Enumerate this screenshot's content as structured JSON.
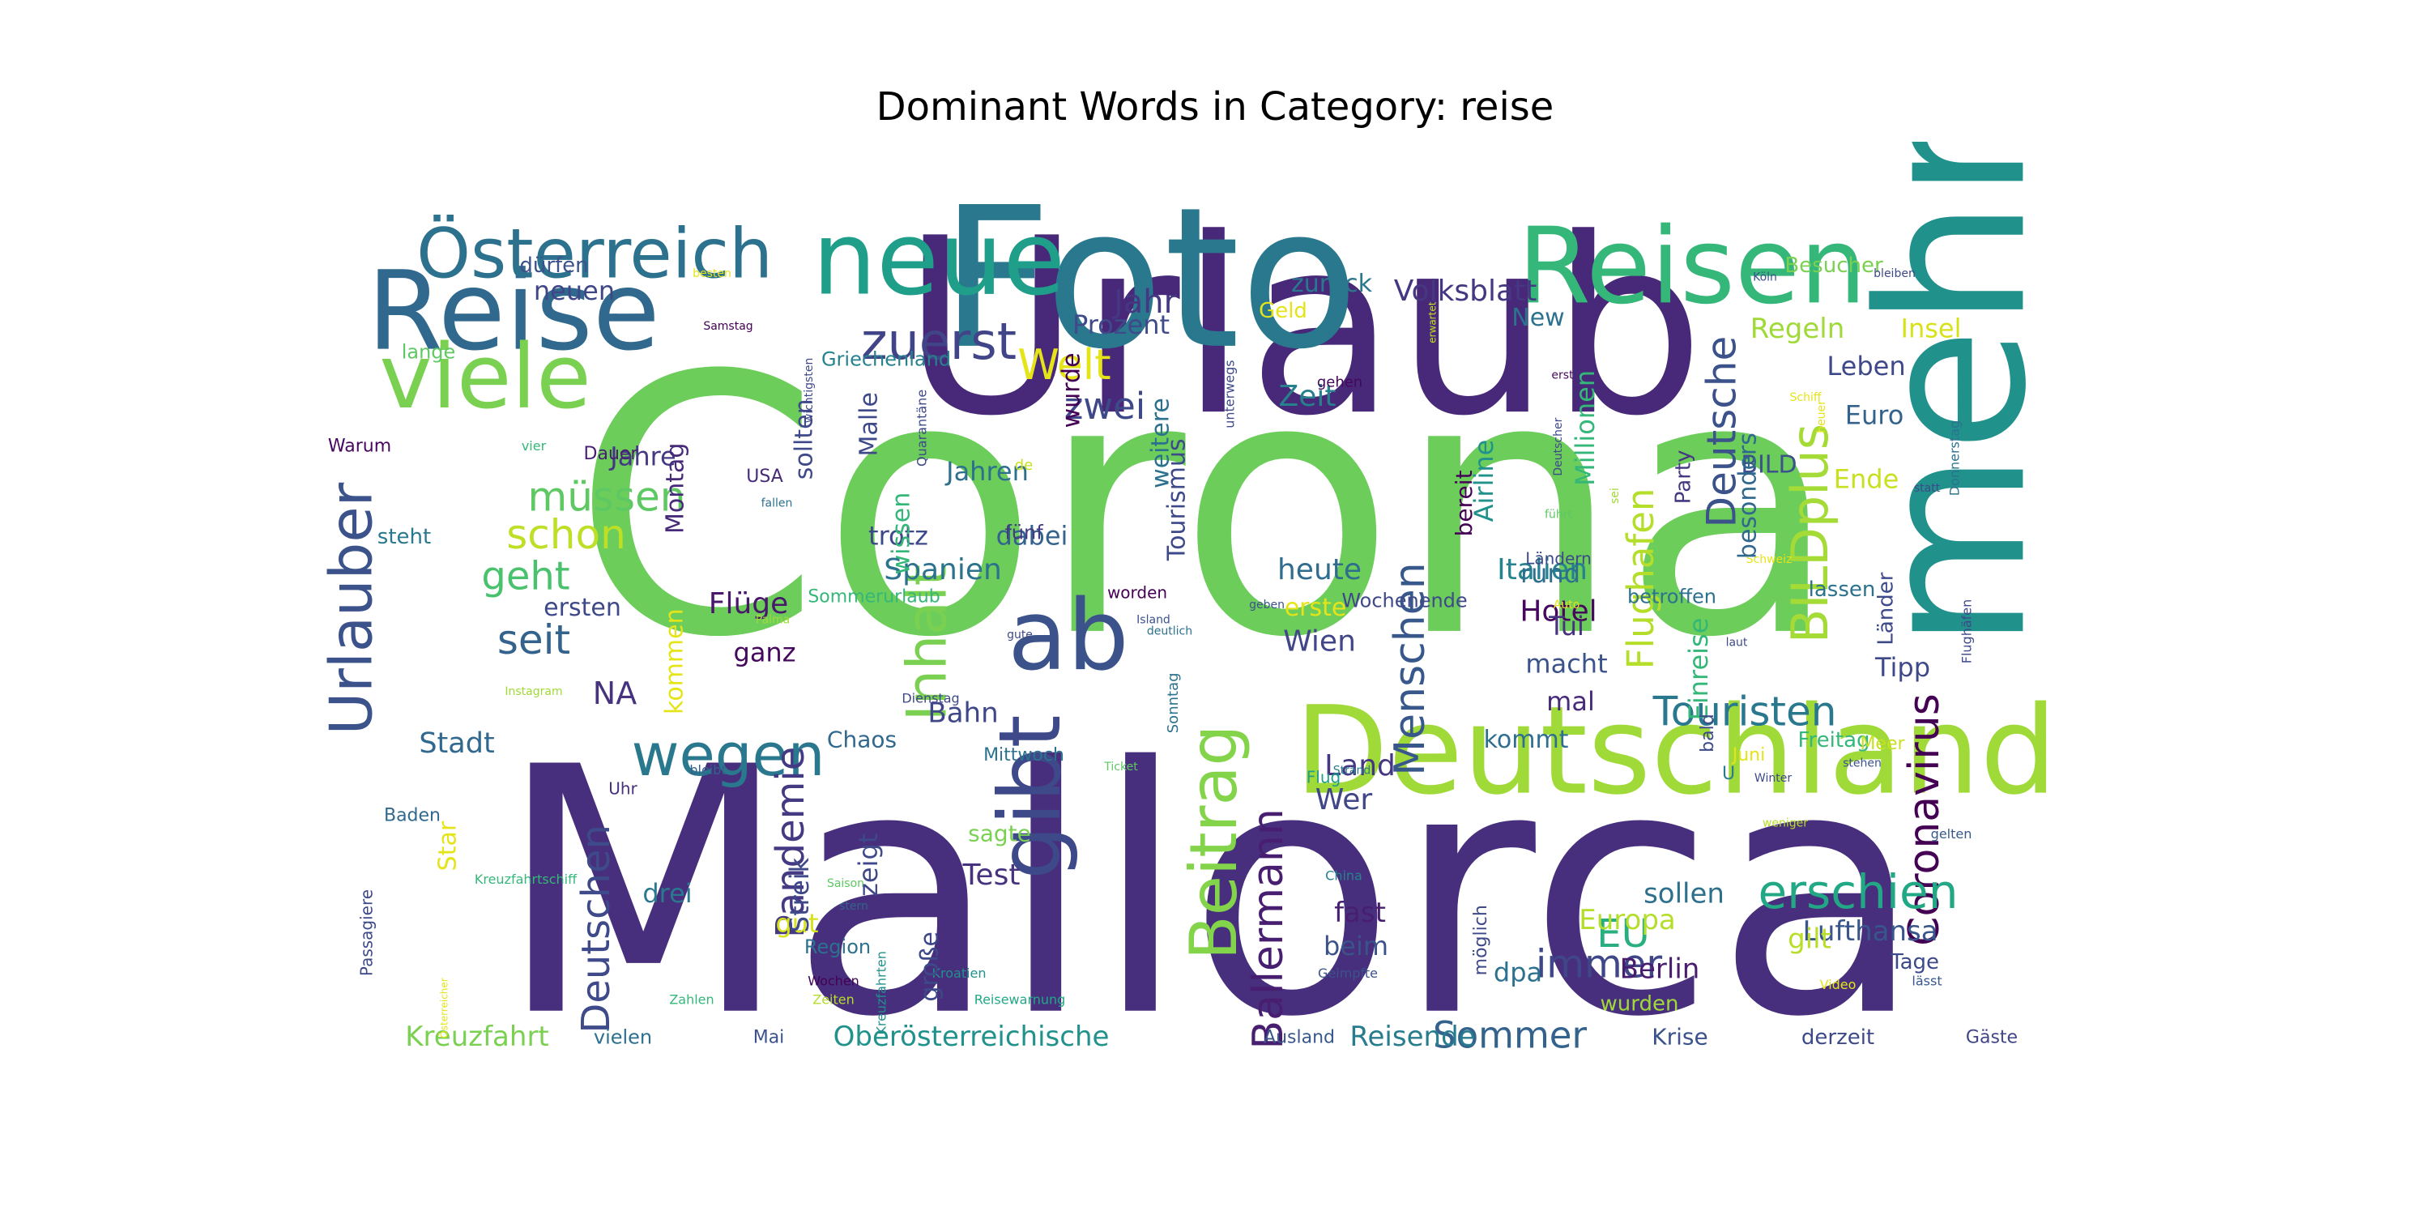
{
  "chart_data": {
    "type": "wordcloud",
    "title": "Dominant Words in Category: reise",
    "colormap": "viridis",
    "words": [
      {
        "text": "Corona",
        "weight": 100,
        "color": "#6ccd5a"
      },
      {
        "text": "Mallorca",
        "weight": 98,
        "color": "#472f7d"
      },
      {
        "text": "Urlaub",
        "weight": 90,
        "color": "#482878"
      },
      {
        "text": "Foto",
        "weight": 64,
        "color": "#2a788e"
      },
      {
        "text": "mehr",
        "weight": 60,
        "color": "#21918c"
      },
      {
        "text": "Deutschland",
        "weight": 40,
        "color": "#a0da39"
      },
      {
        "text": "Reisen",
        "weight": 34,
        "color": "#35b779"
      },
      {
        "text": "neue",
        "weight": 30,
        "color": "#1f9e89"
      },
      {
        "text": "Reise",
        "weight": 30,
        "color": "#31688e"
      },
      {
        "text": "viele",
        "weight": 27,
        "color": "#7ad151"
      },
      {
        "text": "ab",
        "weight": 27,
        "color": "#3b528b"
      },
      {
        "text": "gibt",
        "weight": 24,
        "color": "#3e4989"
      },
      {
        "text": "Österreich",
        "weight": 22,
        "color": "#2c728e"
      },
      {
        "text": "Beitrag",
        "weight": 20,
        "color": "#84d44b"
      },
      {
        "text": "wegen",
        "weight": 19,
        "color": "#2a788e"
      },
      {
        "text": "Urlauber",
        "weight": 19,
        "color": "#3b528b"
      },
      {
        "text": "Inhalt",
        "weight": 18,
        "color": "#7ad151"
      },
      {
        "text": "BILDplus",
        "weight": 17,
        "color": "#a5db36"
      },
      {
        "text": "zuerst",
        "weight": 16,
        "color": "#414487"
      },
      {
        "text": "Coronavirus",
        "weight": 15,
        "color": "#440154"
      },
      {
        "text": "Pandemie",
        "weight": 14,
        "color": "#443983"
      },
      {
        "text": "Ballermann",
        "weight": 14,
        "color": "#481f70"
      },
      {
        "text": "Deutschen",
        "weight": 14,
        "color": "#3e4a89"
      },
      {
        "text": "Menschen",
        "weight": 14,
        "color": "#38588c"
      },
      {
        "text": "erschien",
        "weight": 14,
        "color": "#22a884"
      },
      {
        "text": "Touristen",
        "weight": 13,
        "color": "#2a788e"
      },
      {
        "text": "Deutsche",
        "weight": 13,
        "color": "#3b528b"
      },
      {
        "text": "Flughafen",
        "weight": 12,
        "color": "#b5de2b"
      },
      {
        "text": "schon",
        "weight": 12,
        "color": "#bddf26"
      },
      {
        "text": "müssen",
        "weight": 12,
        "color": "#5ec962"
      },
      {
        "text": "Welt",
        "weight": 12,
        "color": "#e5e419"
      },
      {
        "text": "seit",
        "weight": 12,
        "color": "#33638d"
      },
      {
        "text": "geht",
        "weight": 11,
        "color": "#4ac16d"
      },
      {
        "text": "zwei",
        "weight": 11,
        "color": "#3e4989"
      },
      {
        "text": "immer",
        "weight": 11,
        "color": "#3f4788"
      },
      {
        "text": "Sommer",
        "weight": 11,
        "color": "#33638d"
      },
      {
        "text": "Jahr",
        "weight": 11,
        "color": "#453781"
      },
      {
        "text": "EU",
        "weight": 11,
        "color": "#29af7f"
      },
      {
        "text": "Volksblatt",
        "weight": 10,
        "color": "#453781"
      },
      {
        "text": "Stadt",
        "weight": 10,
        "color": "#31688e"
      },
      {
        "text": "Kreuzfahrt",
        "weight": 10,
        "color": "#7ad151"
      },
      {
        "text": "Oberösterreichische",
        "weight": 10,
        "color": "#21918c"
      },
      {
        "text": "Reisende",
        "weight": 10,
        "color": "#287c8e"
      },
      {
        "text": "NA",
        "weight": 10,
        "color": "#46327e"
      },
      {
        "text": "Flüge",
        "weight": 10,
        "color": "#48186a"
      },
      {
        "text": "Spanien",
        "weight": 10,
        "color": "#2c728e"
      },
      {
        "text": "Italien",
        "weight": 10,
        "color": "#26828e"
      },
      {
        "text": "Wien",
        "weight": 9,
        "color": "#404688"
      },
      {
        "text": "Hotel",
        "weight": 9,
        "color": "#46085c"
      },
      {
        "text": "heute",
        "weight": 9,
        "color": "#2f6c8e"
      },
      {
        "text": "Lufthansa",
        "weight": 9,
        "color": "#39568c"
      },
      {
        "text": "Berlin",
        "weight": 9,
        "color": "#481c6e"
      },
      {
        "text": "sollen",
        "weight": 9,
        "color": "#2d708e"
      },
      {
        "text": "Europa",
        "weight": 9,
        "color": "#b5de2b"
      },
      {
        "text": "Test",
        "weight": 9,
        "color": "#46327e"
      },
      {
        "text": "Wer",
        "weight": 9,
        "color": "#404688"
      },
      {
        "text": "Land",
        "weight": 9,
        "color": "#453781"
      },
      {
        "text": "Bahn",
        "weight": 9,
        "color": "#3f4788"
      },
      {
        "text": "Zeit",
        "weight": 9,
        "color": "#27808e"
      },
      {
        "text": "Regeln",
        "weight": 9,
        "color": "#a0da39"
      },
      {
        "text": "Leben",
        "weight": 9,
        "color": "#3e4989"
      },
      {
        "text": "Euro",
        "weight": 9,
        "color": "#33638d"
      },
      {
        "text": "Ende",
        "weight": 9,
        "color": "#c8e020"
      },
      {
        "text": "Insel",
        "weight": 9,
        "color": "#d8e219"
      },
      {
        "text": "Tipp",
        "weight": 8,
        "color": "#3e4989"
      },
      {
        "text": "Jahren",
        "weight": 8,
        "color": "#2d708e"
      },
      {
        "text": "trotz",
        "weight": 8,
        "color": "#3e4989"
      },
      {
        "text": "dabei",
        "weight": 8,
        "color": "#33638d"
      },
      {
        "text": "ganz",
        "weight": 8,
        "color": "#46085c"
      },
      {
        "text": "macht",
        "weight": 8,
        "color": "#3b528b"
      },
      {
        "text": "rund",
        "weight": 8,
        "color": "#2e6e8e"
      },
      {
        "text": "Tui",
        "weight": 8,
        "color": "#46327e"
      },
      {
        "text": "mal",
        "weight": 8,
        "color": "#472a7a"
      },
      {
        "text": "kommt",
        "weight": 7,
        "color": "#2e6e8e"
      },
      {
        "text": "fast",
        "weight": 8,
        "color": "#481f70"
      },
      {
        "text": "beim",
        "weight": 8,
        "color": "#3b528b"
      },
      {
        "text": "dpa",
        "weight": 8,
        "color": "#2c728e"
      },
      {
        "text": "gilt",
        "weight": 8,
        "color": "#b8de29"
      },
      {
        "text": "drei",
        "weight": 8,
        "color": "#2a788e"
      },
      {
        "text": "gut",
        "weight": 8,
        "color": "#d8e219"
      },
      {
        "text": "Jahre",
        "weight": 8,
        "color": "#443a83"
      },
      {
        "text": "ersten",
        "weight": 7,
        "color": "#3e4989"
      },
      {
        "text": "neuen",
        "weight": 8,
        "color": "#3f4788"
      },
      {
        "text": "Prozent",
        "weight": 8,
        "color": "#3e4a89"
      },
      {
        "text": "zurück",
        "weight": 7,
        "color": "#2a788e"
      },
      {
        "text": "New",
        "weight": 7,
        "color": "#2c728e"
      },
      {
        "text": "erste",
        "weight": 7,
        "color": "#e5e419"
      },
      {
        "text": "sagte",
        "weight": 7,
        "color": "#7ad151"
      },
      {
        "text": "Chaos",
        "weight": 7,
        "color": "#31688e"
      },
      {
        "text": "Krise",
        "weight": 6,
        "color": "#3b528b"
      },
      {
        "text": "derzeit",
        "weight": 6,
        "color": "#3e4989"
      },
      {
        "text": "vielen",
        "weight": 6,
        "color": "#2d708e"
      },
      {
        "text": "Ausland",
        "weight": 5,
        "color": "#38588c"
      },
      {
        "text": "Freitag",
        "weight": 6,
        "color": "#35b779"
      },
      {
        "text": "Region",
        "weight": 6,
        "color": "#2c728e"
      },
      {
        "text": "Star",
        "weight": 7,
        "color": "#e5e419"
      },
      {
        "text": "Besucher",
        "weight": 6,
        "color": "#7ad151"
      },
      {
        "text": "Geld",
        "weight": 6,
        "color": "#e5e419"
      },
      {
        "text": "Griechenland",
        "weight": 6,
        "color": "#26828e"
      },
      {
        "text": "dürfen",
        "weight": 6,
        "color": "#3b528b"
      },
      {
        "text": "lange",
        "weight": 5,
        "color": "#5ec962"
      },
      {
        "text": "Warum",
        "weight": 5,
        "color": "#46085c"
      },
      {
        "text": "Dauer",
        "weight": 5,
        "color": "#481f70"
      },
      {
        "text": "steht",
        "weight": 6,
        "color": "#2a788e"
      },
      {
        "text": "USA",
        "weight": 5,
        "color": "#472a7a"
      },
      {
        "text": "fünf",
        "weight": 6,
        "color": "#443983"
      },
      {
        "text": "Party",
        "weight": 6,
        "color": "#453781"
      },
      {
        "text": "BILD",
        "weight": 7,
        "color": "#3b528b"
      },
      {
        "text": "lassen",
        "weight": 6,
        "color": "#2c728e"
      },
      {
        "text": "betroffen",
        "weight": 5,
        "color": "#2c728e"
      },
      {
        "text": "Wochenende",
        "weight": 5,
        "color": "#3e4989"
      },
      {
        "text": "Sommerurlaub",
        "weight": 5,
        "color": "#35b779"
      },
      {
        "text": "Mittwoch",
        "weight": 5,
        "color": "#2c728e"
      },
      {
        "text": "Baden",
        "weight": 5,
        "color": "#31688e"
      },
      {
        "text": "Uhr",
        "weight": 5,
        "color": "#46327e"
      },
      {
        "text": "Mai",
        "weight": 5,
        "color": "#3b528b"
      },
      {
        "text": "Tage",
        "weight": 6,
        "color": "#3e4989"
      },
      {
        "text": "Gäste",
        "weight": 5,
        "color": "#414487"
      },
      {
        "text": "U",
        "weight": 5,
        "color": "#287c8e"
      },
      {
        "text": "Juni",
        "weight": 5,
        "color": "#e5e419"
      },
      {
        "text": "Meer",
        "weight": 5,
        "color": "#c8e020"
      },
      {
        "text": "Flug",
        "weight": 5,
        "color": "#1f9e89"
      },
      {
        "text": "Kroatien",
        "weight": 4,
        "color": "#21918c"
      },
      {
        "text": "Wochen",
        "weight": 4,
        "color": "#440154"
      },
      {
        "text": "Zeiten",
        "weight": 4,
        "color": "#b5de2b"
      },
      {
        "text": "Zahlen",
        "weight": 4,
        "color": "#35b779"
      },
      {
        "text": "Video",
        "weight": 4,
        "color": "#e5e419"
      },
      {
        "text": "lässt",
        "weight": 4,
        "color": "#38588c"
      },
      {
        "text": "gelten",
        "weight": 4,
        "color": "#38588c"
      },
      {
        "text": "weniger",
        "weight": 3,
        "color": "#b8de29"
      },
      {
        "text": "stehen",
        "weight": 3,
        "color": "#3b528b"
      },
      {
        "text": "Winter",
        "weight": 3,
        "color": "#3e4989"
      },
      {
        "text": "Geimpfte",
        "weight": 4,
        "color": "#3b528b"
      },
      {
        "text": "China",
        "weight": 4,
        "color": "#26828e"
      },
      {
        "text": "Saison",
        "weight": 3,
        "color": "#5ec962"
      },
      {
        "text": "stern",
        "weight": 3,
        "color": "#33638d"
      },
      {
        "text": "Reisewarnung",
        "weight": 4,
        "color": "#22a884"
      },
      {
        "text": "bleibt",
        "weight": 4,
        "color": "#33638d"
      },
      {
        "text": "Strand",
        "weight": 3,
        "color": "#287c8e"
      },
      {
        "text": "Ticket",
        "weight": 3,
        "color": "#5ec962"
      },
      {
        "text": "Dienstag",
        "weight": 4,
        "color": "#3e4989"
      },
      {
        "text": "Instagram",
        "weight": 3,
        "color": "#a0da39"
      },
      {
        "text": "Pfalz",
        "weight": 4,
        "color": "#440154"
      },
      {
        "text": "Palma",
        "weight": 3,
        "color": "#a0da39"
      },
      {
        "text": "Island",
        "weight": 3,
        "color": "#3b528b"
      },
      {
        "text": "gute",
        "weight": 3,
        "color": "#3e4989"
      },
      {
        "text": "geben",
        "weight": 3,
        "color": "#3b528b"
      },
      {
        "text": "deutlich",
        "weight": 3,
        "color": "#2c728e"
      },
      {
        "text": "Auto",
        "weight": 3,
        "color": "#e5e419"
      },
      {
        "text": "laut",
        "weight": 3,
        "color": "#3e4989"
      },
      {
        "text": "Flughäfen",
        "weight": 4,
        "color": "#3e4989"
      },
      {
        "text": "Schweiz",
        "weight": 3,
        "color": "#e5e419"
      },
      {
        "text": "führt",
        "weight": 3,
        "color": "#5ec962"
      },
      {
        "text": "Ländern",
        "weight": 5,
        "color": "#3e4989"
      },
      {
        "text": "worden",
        "weight": 5,
        "color": "#440154"
      },
      {
        "text": "Sonntag",
        "weight": 4,
        "color": "#2c728e"
      },
      {
        "text": "wichtigsten",
        "weight": 3,
        "color": "#3e4989"
      },
      {
        "text": "unterwegs",
        "weight": 4,
        "color": "#3e4989"
      },
      {
        "text": "Quarantäne",
        "weight": 4,
        "color": "#3e4989"
      },
      {
        "text": "fallen",
        "weight": 3,
        "color": "#2c728e"
      },
      {
        "text": "besten",
        "weight": 3,
        "color": "#e5e419"
      },
      {
        "text": "Samstag",
        "weight": 3,
        "color": "#440154"
      },
      {
        "text": "vier",
        "weight": 4,
        "color": "#35b779"
      },
      {
        "text": "gehen",
        "weight": 4,
        "color": "#46085c"
      },
      {
        "text": "erwartet",
        "weight": 3,
        "color": "#c8e020"
      },
      {
        "text": "erst",
        "weight": 3,
        "color": "#46085c"
      },
      {
        "text": "Köln",
        "weight": 3,
        "color": "#3b528b"
      },
      {
        "text": "bleiben",
        "weight": 3,
        "color": "#3e4989"
      },
      {
        "text": "Schiff",
        "weight": 3,
        "color": "#e5e419"
      },
      {
        "text": "heuer",
        "weight": 3,
        "color": "#e5e419"
      },
      {
        "text": "Donnerstag",
        "weight": 4,
        "color": "#2c728e"
      },
      {
        "text": "statt",
        "weight": 3,
        "color": "#3e4989"
      },
      {
        "text": "sei",
        "weight": 3,
        "color": "#a0da39"
      },
      {
        "text": "Deutscher",
        "weight": 3,
        "color": "#3e4989"
      },
      {
        "text": "de",
        "weight": 4,
        "color": "#c8e020"
      },
      {
        "text": "Kreuzfahrtschiff",
        "weight": 4,
        "color": "#35b779"
      },
      {
        "text": "Kreuzfahrten",
        "weight": 4,
        "color": "#21918c"
      },
      {
        "text": "Passagiere",
        "weight": 5,
        "color": "#3e4989"
      },
      {
        "text": "Österreicher",
        "weight": 3,
        "color": "#e5e419"
      },
      {
        "text": "möglich",
        "weight": 6,
        "color": "#3e4989"
      },
      {
        "text": "Millionen",
        "weight": 7,
        "color": "#35b779"
      },
      {
        "text": "Airline",
        "weight": 6,
        "color": "#21918c"
      },
      {
        "text": "Einreise",
        "weight": 7,
        "color": "#35b779"
      },
      {
        "text": "Länder",
        "weight": 6,
        "color": "#3e4989"
      },
      {
        "text": "besonders",
        "weight": 7,
        "color": "#31688e"
      },
      {
        "text": "bereit",
        "weight": 6,
        "color": "#440154"
      },
      {
        "text": "Tourismus",
        "weight": 7,
        "color": "#3e4989"
      },
      {
        "text": "weitere",
        "weight": 7,
        "color": "#2c728e"
      },
      {
        "text": "wurde",
        "weight": 7,
        "color": "#440154"
      },
      {
        "text": "wissen",
        "weight": 7,
        "color": "#35b779"
      },
      {
        "text": "Malle",
        "weight": 7,
        "color": "#3e4989"
      },
      {
        "text": "sollten",
        "weight": 7,
        "color": "#3e4989"
      },
      {
        "text": "Montag",
        "weight": 7,
        "color": "#472a7a"
      },
      {
        "text": "kommen",
        "weight": 7,
        "color": "#e5e419"
      },
      {
        "text": "Streik",
        "weight": 7,
        "color": "#3e4989"
      },
      {
        "text": "zeigt",
        "weight": 7,
        "color": "#3e4989"
      },
      {
        "text": "große",
        "weight": 7,
        "color": "#3e4989"
      },
      {
        "text": "bald",
        "weight": 5,
        "color": "#3e4989"
      },
      {
        "text": "wurden",
        "weight": 6,
        "color": "#a0da39"
      }
    ]
  }
}
